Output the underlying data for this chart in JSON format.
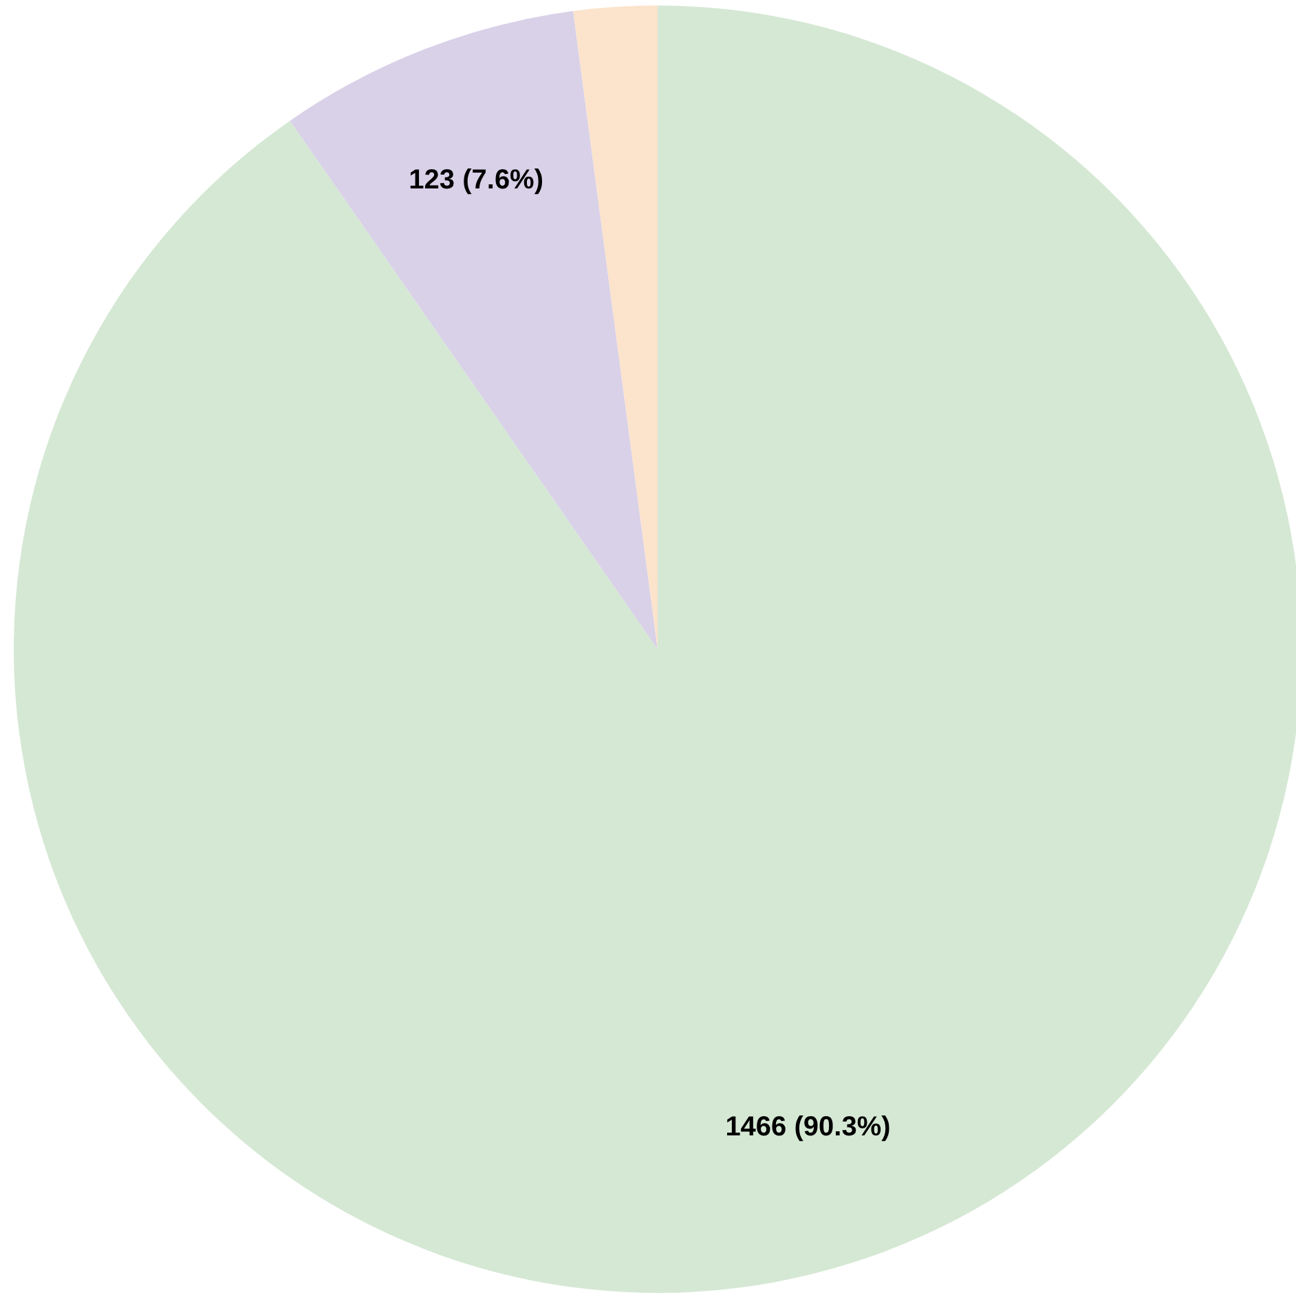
{
  "chart_data": {
    "type": "pie",
    "categories": [
      null,
      null,
      null
    ],
    "values": [
      1466,
      123,
      34
    ],
    "colors": [
      "#d5e8d4",
      "#d9d1e8",
      "#fbe3cc"
    ],
    "value_labels": [
      "1466 (90.3%)",
      "123 (7.6%)",
      null
    ]
  }
}
